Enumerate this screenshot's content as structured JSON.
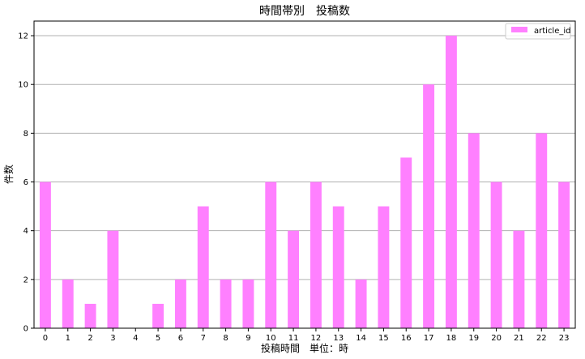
{
  "chart_data": {
    "type": "bar",
    "title": "時間帯別　投稿数",
    "xlabel": "投稿時間　単位：時",
    "ylabel": "件数",
    "categories": [
      "0",
      "1",
      "2",
      "3",
      "4",
      "5",
      "6",
      "7",
      "8",
      "9",
      "10",
      "11",
      "12",
      "13",
      "14",
      "15",
      "16",
      "17",
      "18",
      "19",
      "20",
      "21",
      "22",
      "23"
    ],
    "series": [
      {
        "name": "article_id",
        "color": "#ff80ff",
        "values": [
          6,
          2,
          1,
          4,
          0,
          1,
          2,
          5,
          2,
          2,
          6,
          4,
          6,
          5,
          2,
          5,
          7,
          10,
          12,
          8,
          6,
          4,
          8,
          6
        ]
      }
    ],
    "ylim": [
      0,
      12.6
    ],
    "yticks": [
      0,
      2,
      4,
      6,
      8,
      10,
      12
    ],
    "grid": "horizontal",
    "legend_position": "top-right"
  }
}
